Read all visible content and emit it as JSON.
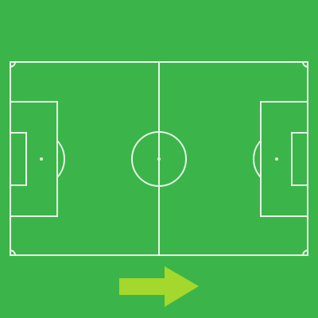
{
  "colors": {
    "field": "#3bb54a",
    "lines": "#e8f5e4",
    "arrow": "#a4d82c"
  },
  "pitch": {
    "markings": [
      "outer-boundary",
      "halfway-line",
      "center-circle",
      "center-spot",
      "penalty-area-left",
      "goal-area-left",
      "penalty-spot-left",
      "penalty-arc-left",
      "penalty-area-right",
      "goal-area-right",
      "penalty-spot-right",
      "penalty-arc-right",
      "corner-arcs"
    ]
  },
  "direction_indicator": {
    "icon": "arrow-right-icon",
    "direction": "right"
  }
}
